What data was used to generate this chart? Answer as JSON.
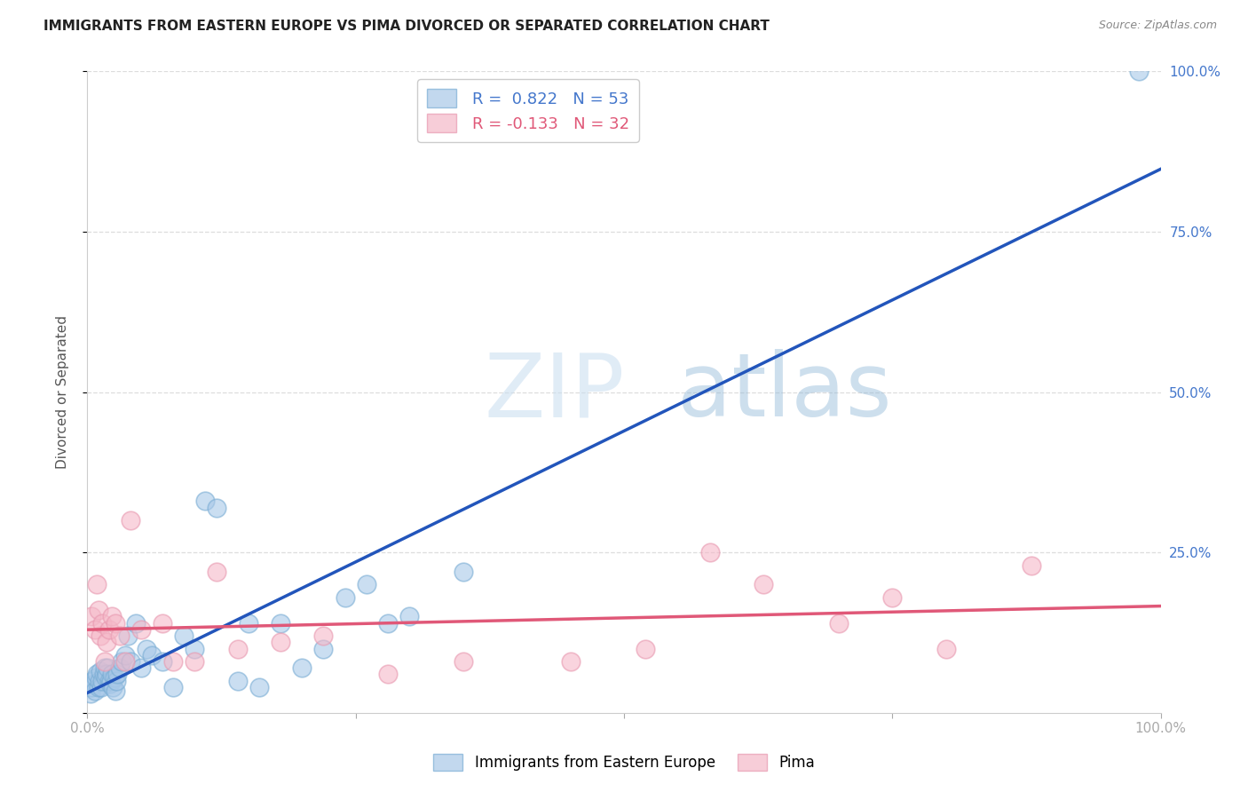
{
  "title": "IMMIGRANTS FROM EASTERN EUROPE VS PIMA DIVORCED OR SEPARATED CORRELATION CHART",
  "source": "Source: ZipAtlas.com",
  "ylabel": "Divorced or Separated",
  "blue_label": "Immigrants from Eastern Europe",
  "pink_label": "Pima",
  "blue_R": 0.822,
  "blue_N": 53,
  "pink_R": -0.133,
  "pink_N": 32,
  "blue_color": "#a8c8e8",
  "blue_edge_color": "#7aadd4",
  "blue_line_color": "#2255bb",
  "pink_color": "#f5b8c8",
  "pink_edge_color": "#e899b0",
  "pink_line_color": "#e05878",
  "blue_x": [
    0.3,
    0.4,
    0.5,
    0.6,
    0.7,
    0.8,
    0.9,
    1.0,
    1.1,
    1.2,
    1.3,
    1.4,
    1.5,
    1.6,
    1.7,
    1.8,
    1.9,
    2.0,
    2.1,
    2.2,
    2.3,
    2.4,
    2.5,
    2.6,
    2.7,
    2.8,
    3.0,
    3.2,
    3.5,
    3.8,
    4.0,
    4.5,
    5.0,
    5.5,
    6.0,
    7.0,
    8.0,
    9.0,
    10.0,
    11.0,
    12.0,
    14.0,
    15.0,
    16.0,
    18.0,
    20.0,
    22.0,
    24.0,
    26.0,
    28.0,
    30.0,
    35.0,
    98.0
  ],
  "blue_y": [
    3.0,
    4.0,
    5.0,
    4.5,
    3.5,
    5.5,
    6.0,
    4.0,
    5.0,
    6.5,
    4.0,
    5.0,
    6.0,
    7.0,
    5.5,
    6.0,
    7.0,
    5.0,
    4.5,
    5.0,
    6.0,
    4.0,
    5.5,
    3.5,
    5.0,
    6.0,
    7.0,
    8.0,
    9.0,
    12.0,
    8.0,
    14.0,
    7.0,
    10.0,
    9.0,
    8.0,
    4.0,
    12.0,
    10.0,
    33.0,
    32.0,
    5.0,
    14.0,
    4.0,
    14.0,
    7.0,
    10.0,
    18.0,
    20.0,
    14.0,
    15.0,
    22.0,
    100.0
  ],
  "pink_x": [
    0.4,
    0.7,
    0.9,
    1.0,
    1.2,
    1.4,
    1.6,
    1.8,
    2.0,
    2.3,
    2.6,
    3.0,
    3.5,
    4.0,
    5.0,
    7.0,
    8.0,
    10.0,
    12.0,
    14.0,
    18.0,
    22.0,
    28.0,
    35.0,
    45.0,
    52.0,
    58.0,
    63.0,
    70.0,
    75.0,
    80.0,
    88.0
  ],
  "pink_y": [
    15.0,
    13.0,
    20.0,
    16.0,
    12.0,
    14.0,
    8.0,
    11.0,
    13.0,
    15.0,
    14.0,
    12.0,
    8.0,
    30.0,
    13.0,
    14.0,
    8.0,
    8.0,
    22.0,
    10.0,
    11.0,
    12.0,
    6.0,
    8.0,
    8.0,
    10.0,
    25.0,
    20.0,
    14.0,
    18.0,
    10.0,
    23.0
  ],
  "xlim": [
    0,
    100
  ],
  "ylim": [
    0,
    100
  ],
  "xticks": [
    0,
    25,
    50,
    75,
    100
  ],
  "yticks": [
    0,
    25,
    50,
    75,
    100
  ],
  "xticklabels": [
    "0.0%",
    "",
    "",
    "",
    "100.0%"
  ],
  "yticklabels_right": [
    "",
    "25.0%",
    "50.0%",
    "75.0%",
    "100.0%"
  ],
  "watermark_zip": "ZIP",
  "watermark_atlas": "atlas",
  "background_color": "#ffffff",
  "grid_color": "#dddddd",
  "tick_color": "#aaaaaa",
  "right_tick_color": "#4477cc",
  "title_color": "#222222",
  "source_color": "#888888",
  "ylabel_color": "#555555"
}
